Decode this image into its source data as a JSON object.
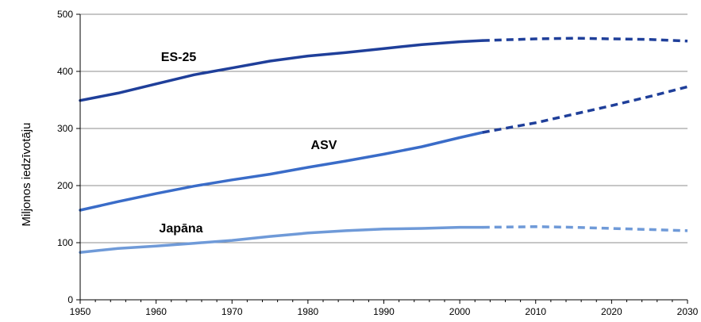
{
  "chart_data": {
    "type": "line",
    "title": "",
    "xlabel": "",
    "ylabel": "Miljonos iedzīvotāju",
    "xlim": [
      1950,
      2030
    ],
    "ylim": [
      0,
      500
    ],
    "x_ticks": [
      "1950",
      "1960",
      "1970",
      "1980",
      "1990",
      "2000",
      "2010",
      "2020",
      "2030"
    ],
    "y_ticks": [
      "0",
      "100",
      "200",
      "300",
      "400",
      "500"
    ],
    "grid": "horizontal",
    "legend": "none",
    "series": [
      {
        "name": "ES-25",
        "color": "#1f3f9a",
        "actual": [
          [
            1950,
            349
          ],
          [
            1955,
            362
          ],
          [
            1960,
            378
          ],
          [
            1965,
            394
          ],
          [
            1970,
            406
          ],
          [
            1975,
            418
          ],
          [
            1980,
            427
          ],
          [
            1985,
            433
          ],
          [
            1990,
            440
          ],
          [
            1995,
            447
          ],
          [
            2000,
            452
          ],
          [
            2003,
            454
          ]
        ],
        "projected": [
          [
            2003,
            454
          ],
          [
            2010,
            457
          ],
          [
            2015,
            458
          ],
          [
            2020,
            457
          ],
          [
            2025,
            456
          ],
          [
            2030,
            453
          ]
        ]
      },
      {
        "name": "ASV",
        "color": "#3a6cc8",
        "projected_color": "#1f3f9a",
        "actual": [
          [
            1950,
            157
          ],
          [
            1955,
            172
          ],
          [
            1960,
            186
          ],
          [
            1965,
            199
          ],
          [
            1970,
            210
          ],
          [
            1975,
            220
          ],
          [
            1980,
            232
          ],
          [
            1985,
            243
          ],
          [
            1990,
            255
          ],
          [
            1995,
            268
          ],
          [
            2000,
            284
          ],
          [
            2003,
            293
          ]
        ],
        "projected": [
          [
            2003,
            293
          ],
          [
            2010,
            310
          ],
          [
            2015,
            325
          ],
          [
            2020,
            340
          ],
          [
            2025,
            356
          ],
          [
            2030,
            373
          ]
        ]
      },
      {
        "name": "Japāna",
        "color": "#6f9ad8",
        "actual": [
          [
            1950,
            83
          ],
          [
            1955,
            90
          ],
          [
            1960,
            94
          ],
          [
            1965,
            99
          ],
          [
            1970,
            104
          ],
          [
            1975,
            111
          ],
          [
            1980,
            117
          ],
          [
            1985,
            121
          ],
          [
            1990,
            124
          ],
          [
            1995,
            125
          ],
          [
            2000,
            127
          ],
          [
            2003,
            127
          ]
        ],
        "projected": [
          [
            2003,
            127
          ],
          [
            2010,
            128
          ],
          [
            2015,
            127
          ],
          [
            2020,
            125
          ],
          [
            2025,
            123
          ],
          [
            2030,
            121
          ]
        ]
      }
    ]
  }
}
